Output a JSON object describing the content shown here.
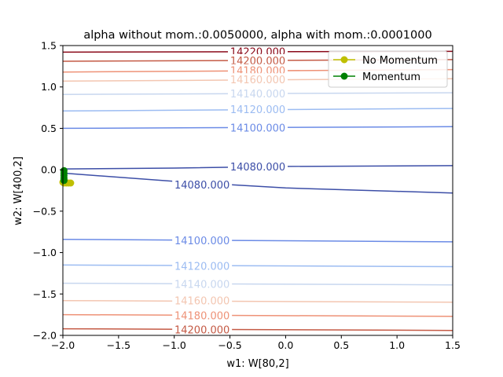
{
  "chart_data": {
    "type": "line",
    "title": "alpha without mom.:0.0050000, alpha with mom.:0.0001000",
    "xlabel": "w1: W[80,2]",
    "ylabel": "w2: W[400,2]",
    "xlim": [
      -2.0,
      1.5
    ],
    "ylim": [
      -2.0,
      1.5
    ],
    "xticks": [
      -2.0,
      -1.5,
      -1.0,
      -0.5,
      0.0,
      0.5,
      1.0,
      1.5
    ],
    "xtick_labels": [
      "−2.0",
      "−1.5",
      "−1.0",
      "−0.5",
      "0.0",
      "0.5",
      "1.0",
      "1.5"
    ],
    "yticks": [
      -2.0,
      -1.5,
      -1.0,
      -0.5,
      0.0,
      0.5,
      1.0,
      1.5
    ],
    "ytick_labels": [
      "−2.0",
      "−1.5",
      "−1.0",
      "−0.5",
      "0.0",
      "0.5",
      "1.0",
      "1.5"
    ],
    "grid": false,
    "legend_position": "top-right",
    "contours": [
      {
        "level": "14220.000",
        "color": "#8b0a1a",
        "line": [
          [
            -2.0,
            1.42
          ],
          [
            1.5,
            1.43
          ]
        ],
        "label_at": [
          -0.25,
          1.43
        ]
      },
      {
        "level": "14200.000",
        "color": "#c45a45",
        "line": [
          [
            -2.0,
            1.31
          ],
          [
            1.5,
            1.33
          ]
        ],
        "label_at": [
          -0.25,
          1.32
        ]
      },
      {
        "level": "14180.000",
        "color": "#ee9277",
        "line": [
          [
            -2.0,
            1.18
          ],
          [
            1.5,
            1.21
          ]
        ],
        "label_at": [
          -0.25,
          1.2
        ]
      },
      {
        "level": "14160.000",
        "color": "#f3c6b1",
        "line": [
          [
            -2.0,
            1.07
          ],
          [
            1.5,
            1.1
          ]
        ],
        "label_at": [
          -0.25,
          1.09
        ]
      },
      {
        "level": "14140.000",
        "color": "#c8d7ef",
        "line": [
          [
            -2.0,
            0.91
          ],
          [
            1.5,
            0.93
          ]
        ],
        "label_at": [
          -0.25,
          0.92
        ]
      },
      {
        "level": "14120.000",
        "color": "#9cbcf2",
        "line": [
          [
            -2.0,
            0.71
          ],
          [
            1.5,
            0.74
          ]
        ],
        "label_at": [
          -0.25,
          0.73
        ]
      },
      {
        "level": "14100.000",
        "color": "#6b8be6",
        "line": [
          [
            -2.0,
            0.5
          ],
          [
            1.5,
            0.52
          ]
        ],
        "label_at": [
          -0.25,
          0.51
        ]
      },
      {
        "level": "14080.000",
        "color": "#3c4ea7",
        "line": [
          [
            -2.0,
            0.01
          ],
          [
            -1.0,
            0.02
          ],
          [
            0.0,
            0.04
          ],
          [
            1.5,
            0.05
          ]
        ],
        "label_at": [
          -0.25,
          0.04
        ]
      },
      {
        "level": "14080.000",
        "color": "#3c4ea7",
        "line": [
          [
            -2.0,
            -0.04
          ],
          [
            -1.0,
            -0.14
          ],
          [
            0.0,
            -0.22
          ],
          [
            1.0,
            -0.26
          ],
          [
            1.5,
            -0.28
          ]
        ],
        "label_at": [
          -0.75,
          -0.18
        ]
      },
      {
        "level": "14100.000",
        "color": "#6b8be6",
        "line": [
          [
            -2.0,
            -0.84
          ],
          [
            1.5,
            -0.87
          ]
        ],
        "label_at": [
          -0.75,
          -0.85
        ]
      },
      {
        "level": "14120.000",
        "color": "#9cbcf2",
        "line": [
          [
            -2.0,
            -1.15
          ],
          [
            1.5,
            -1.17
          ]
        ],
        "label_at": [
          -0.75,
          -1.16
        ]
      },
      {
        "level": "14140.000",
        "color": "#c8d7ef",
        "line": [
          [
            -2.0,
            -1.37
          ],
          [
            1.5,
            -1.39
          ]
        ],
        "label_at": [
          -0.75,
          -1.38
        ]
      },
      {
        "level": "14160.000",
        "color": "#f3c6b1",
        "line": [
          [
            -2.0,
            -1.58
          ],
          [
            1.5,
            -1.6
          ]
        ],
        "label_at": [
          -0.75,
          -1.58
        ]
      },
      {
        "level": "14180.000",
        "color": "#ee9277",
        "line": [
          [
            -2.0,
            -1.75
          ],
          [
            1.5,
            -1.77
          ]
        ],
        "label_at": [
          -0.75,
          -1.76
        ]
      },
      {
        "level": "14200.000",
        "color": "#c45a45",
        "line": [
          [
            -2.0,
            -1.92
          ],
          [
            1.5,
            -1.94
          ]
        ],
        "label_at": [
          -0.75,
          -1.93
        ]
      }
    ],
    "series": [
      {
        "name": "No Momentum",
        "color": "#bfbf00",
        "x": [
          -2.0,
          -1.99,
          -1.97,
          -1.95,
          -1.93
        ],
        "y": [
          -0.15,
          -0.16,
          -0.16,
          -0.16,
          -0.16
        ]
      },
      {
        "name": "Momentum",
        "color": "#008000",
        "x": [
          -1.99,
          -1.99,
          -1.99,
          -1.99,
          -1.99,
          -1.99
        ],
        "y": [
          -0.01,
          -0.04,
          -0.07,
          -0.1,
          -0.12,
          -0.13
        ]
      }
    ]
  }
}
